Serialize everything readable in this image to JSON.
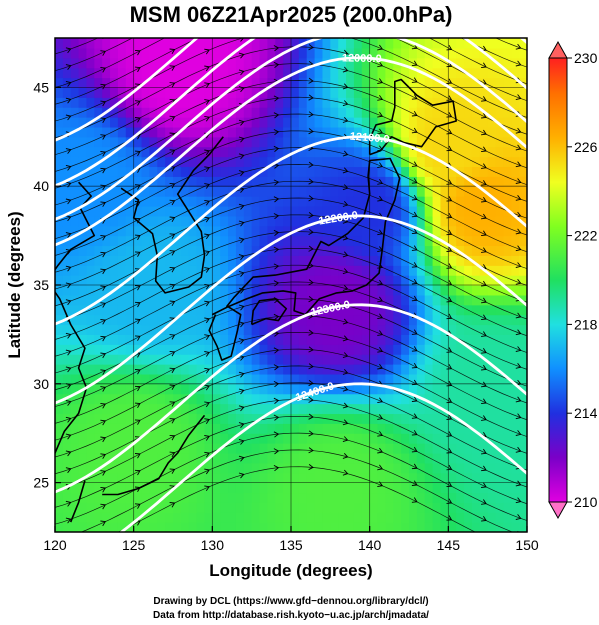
{
  "chart_data": {
    "type": "heatmap",
    "title": "MSM 06Z21Apr2025 (200.0hPa)",
    "xlabel": "Longitude (degrees)",
    "ylabel": "Latitude  (degrees)",
    "xlim": [
      120,
      150
    ],
    "ylim": [
      22.5,
      47.5
    ],
    "x_ticks": [
      "120",
      "125",
      "130",
      "135",
      "140",
      "145",
      "150"
    ],
    "y_ticks": [
      "25",
      "30",
      "35",
      "40",
      "45"
    ],
    "x_tick_values": [
      120,
      125,
      130,
      135,
      140,
      145,
      150
    ],
    "y_tick_values": [
      25,
      30,
      35,
      40,
      45
    ],
    "grid": true,
    "colorbar": {
      "min": 210,
      "max": 230,
      "tick_labels": [
        "210",
        "214",
        "218",
        "222",
        "226",
        "230"
      ],
      "tick_values": [
        210,
        214,
        218,
        222,
        226,
        230
      ],
      "colors": [
        "#e000e0",
        "#7a00c8",
        "#2030e0",
        "#1090ff",
        "#20e0e0",
        "#20e060",
        "#80ff20",
        "#f0ff20",
        "#ffb000",
        "#ff7000",
        "#ff2020"
      ]
    },
    "contours": [
      {
        "label": "11900.0",
        "value": 11900
      },
      {
        "label": "12000.0",
        "value": 12000
      },
      {
        "label": "12100.0",
        "value": 12100
      },
      {
        "label": "12200.0",
        "value": 12200
      },
      {
        "label": "12300.0",
        "value": 12300
      },
      {
        "label": "12400.0",
        "value": 12400
      }
    ],
    "field_features": [
      {
        "type": "cold",
        "lon": 128,
        "lat": 46,
        "value": 210
      },
      {
        "type": "cold",
        "lon": 138,
        "lat": 34,
        "value": 212
      },
      {
        "type": "cold",
        "lon": 140,
        "lat": 39,
        "value": 214
      },
      {
        "type": "warm",
        "lon": 147,
        "lat": 39,
        "value": 226
      },
      {
        "type": "warm",
        "lon": 145,
        "lat": 42,
        "value": 225
      },
      {
        "type": "cool",
        "lon": 122,
        "lat": 40,
        "value": 216
      },
      {
        "type": "cool",
        "lon": 126,
        "lat": 35,
        "value": 217
      },
      {
        "type": "mild",
        "lon": 125,
        "lat": 27,
        "value": 221
      },
      {
        "type": "mild",
        "lon": 138,
        "lat": 25,
        "value": 221
      },
      {
        "type": "mild",
        "lon": 148,
        "lat": 30,
        "value": 219
      }
    ]
  },
  "credits": {
    "line1": "Drawing by DCL (https://www.gfd−dennou.org/library/dcl/)",
    "line2": "Data from http://database.rish.kyoto−u.ac.jp/arch/jmadata/"
  }
}
